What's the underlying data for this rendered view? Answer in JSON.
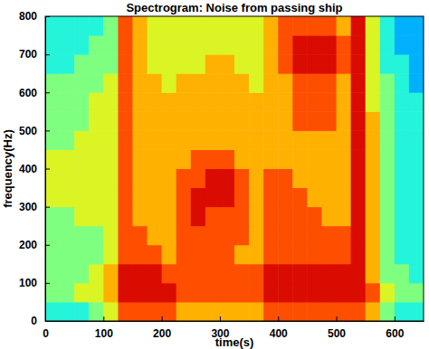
{
  "chart_data": {
    "type": "heatmap",
    "title": "Spectrogram: Noise from passing ship",
    "x_label": "time(s)",
    "y_label": "frequency(Hz)",
    "xlim": [
      0,
      650
    ],
    "xticks": [
      0,
      100,
      200,
      300,
      400,
      500,
      600
    ],
    "ylim": [
      0,
      800
    ],
    "yticks": [
      0,
      100,
      200,
      300,
      400,
      500,
      600,
      700,
      800
    ],
    "zlim": [
      0,
      10
    ],
    "x_bins": [
      0,
      25,
      50,
      75,
      100,
      125,
      150,
      175,
      200,
      225,
      250,
      275,
      300,
      325,
      350,
      375,
      400,
      425,
      450,
      475,
      500,
      525,
      550,
      575,
      600,
      625,
      650
    ],
    "y_bins": [
      0,
      50,
      100,
      150,
      200,
      250,
      300,
      350,
      400,
      450,
      500,
      550,
      600,
      650,
      700,
      750,
      800
    ],
    "z": [
      [
        4,
        4,
        4,
        5,
        6,
        8,
        8,
        8,
        8,
        7,
        7,
        7,
        7,
        7,
        7,
        8,
        8,
        8,
        8,
        8,
        8,
        8,
        7,
        5,
        4,
        4
      ],
      [
        5,
        5,
        6,
        6,
        7,
        9,
        9,
        9,
        9,
        8,
        8,
        8,
        8,
        8,
        8,
        9,
        9,
        9,
        9,
        9,
        9,
        9,
        8,
        6,
        5,
        5
      ],
      [
        5,
        5,
        5,
        6,
        7,
        9,
        9,
        9,
        8,
        8,
        8,
        8,
        8,
        8,
        8,
        9,
        9,
        9,
        9,
        9,
        9,
        9,
        7,
        5,
        5,
        4
      ],
      [
        5,
        5,
        5,
        5,
        6,
        8,
        8,
        8,
        7,
        8,
        8,
        8,
        8,
        7,
        7,
        8,
        8,
        8,
        8,
        8,
        8,
        9,
        7,
        5,
        4,
        4
      ],
      [
        5,
        5,
        5,
        5,
        6,
        8,
        8,
        7,
        7,
        8,
        8,
        8,
        8,
        8,
        7,
        8,
        8,
        8,
        8,
        8,
        8,
        9,
        7,
        5,
        4,
        4
      ],
      [
        5,
        5,
        6,
        6,
        6,
        8,
        7,
        7,
        7,
        8,
        9,
        8,
        8,
        8,
        7,
        8,
        8,
        8,
        8,
        7,
        7,
        9,
        7,
        5,
        4,
        4
      ],
      [
        6,
        6,
        6,
        6,
        6,
        8,
        7,
        7,
        7,
        8,
        9,
        9,
        9,
        8,
        7,
        8,
        8,
        8,
        7,
        7,
        7,
        9,
        7,
        5,
        4,
        4
      ],
      [
        6,
        6,
        6,
        6,
        6,
        8,
        7,
        7,
        7,
        8,
        8,
        9,
        9,
        8,
        7,
        8,
        8,
        7,
        7,
        7,
        7,
        9,
        7,
        5,
        4,
        4
      ],
      [
        6,
        6,
        6,
        6,
        6,
        8,
        7,
        7,
        7,
        7,
        8,
        8,
        8,
        7,
        7,
        7,
        7,
        7,
        7,
        7,
        7,
        9,
        7,
        5,
        4,
        4
      ],
      [
        5,
        5,
        6,
        6,
        6,
        8,
        7,
        7,
        7,
        7,
        7,
        7,
        7,
        7,
        7,
        7,
        7,
        7,
        7,
        7,
        7,
        9,
        7,
        5,
        4,
        4
      ],
      [
        5,
        5,
        5,
        6,
        6,
        8,
        7,
        7,
        7,
        7,
        7,
        7,
        7,
        7,
        7,
        7,
        7,
        8,
        8,
        8,
        7,
        9,
        7,
        5,
        4,
        4
      ],
      [
        5,
        5,
        5,
        6,
        6,
        8,
        7,
        7,
        7,
        7,
        7,
        7,
        7,
        7,
        7,
        7,
        7,
        8,
        8,
        8,
        7,
        9,
        6,
        5,
        4,
        4
      ],
      [
        5,
        5,
        5,
        5,
        6,
        8,
        7,
        7,
        6,
        7,
        7,
        7,
        7,
        7,
        6,
        7,
        7,
        8,
        8,
        8,
        7,
        9,
        6,
        5,
        4,
        3
      ],
      [
        4,
        4,
        5,
        5,
        5,
        8,
        7,
        6,
        6,
        6,
        6,
        7,
        7,
        6,
        6,
        7,
        8,
        9,
        9,
        9,
        8,
        9,
        6,
        4,
        4,
        3
      ],
      [
        4,
        4,
        4,
        5,
        5,
        8,
        7,
        6,
        6,
        6,
        6,
        6,
        6,
        6,
        6,
        7,
        8,
        9,
        9,
        9,
        8,
        9,
        6,
        4,
        3,
        3
      ],
      [
        4,
        4,
        4,
        4,
        5,
        8,
        7,
        6,
        6,
        6,
        6,
        6,
        6,
        6,
        6,
        7,
        8,
        8,
        8,
        8,
        7,
        9,
        6,
        4,
        3,
        3
      ]
    ]
  }
}
